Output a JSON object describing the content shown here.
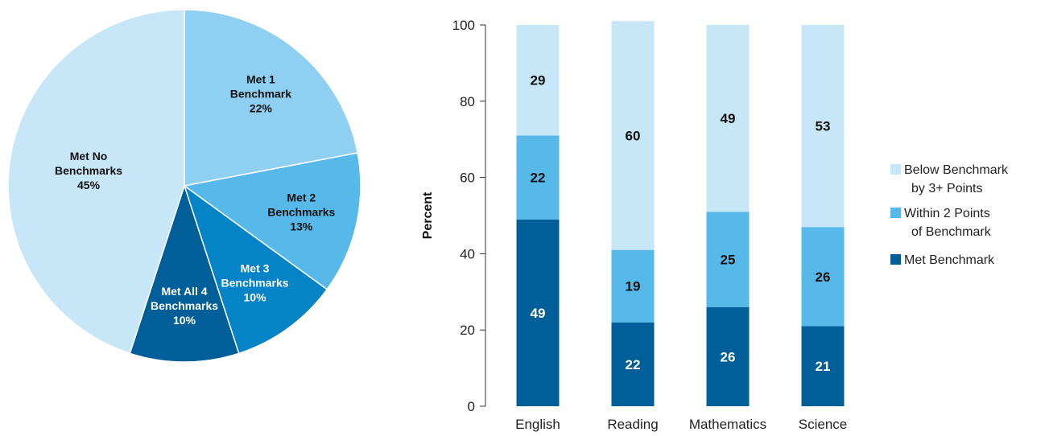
{
  "colors": {
    "lightest": "#c7e6f8",
    "light": "#8ecff2",
    "mid": "#56b9ea",
    "strong": "#0583c7",
    "dark": "#005f99",
    "pie_stroke": "#ffffff"
  },
  "chart_data": [
    {
      "type": "pie",
      "title": "",
      "slices": [
        {
          "lines": [
            "Met 1",
            "Benchmark",
            "22%"
          ],
          "value": 22,
          "color": "#8ecff2",
          "text_color": "#111111"
        },
        {
          "lines": [
            "Met 2",
            "Benchmarks",
            "13%"
          ],
          "value": 13,
          "color": "#56b9ea",
          "text_color": "#111111"
        },
        {
          "lines": [
            "Met 3",
            "Benchmarks",
            "10%"
          ],
          "value": 10,
          "color": "#0583c7",
          "text_color": "#ffffff"
        },
        {
          "lines": [
            "Met All 4",
            "Benchmarks",
            "10%"
          ],
          "value": 10,
          "color": "#005f99",
          "text_color": "#ffffff"
        },
        {
          "lines": [
            "Met No",
            "Benchmarks",
            "45%"
          ],
          "value": 45,
          "color": "#c7e6f8",
          "text_color": "#111111"
        }
      ]
    },
    {
      "type": "bar",
      "stacked": true,
      "title": "",
      "xlabel": "",
      "ylabel": "Percent",
      "ylim": [
        0,
        100
      ],
      "yticks": [
        "0",
        "20",
        "40",
        "60",
        "80",
        "100"
      ],
      "categories": [
        "English",
        "Reading",
        "Mathematics",
        "Science"
      ],
      "series": [
        {
          "name": "Met Benchmark",
          "values": [
            49,
            22,
            26,
            21
          ],
          "color": "#005f99",
          "text_color": "#ffffff"
        },
        {
          "name": "Within 2 Points of Benchmark",
          "legend_lines": [
            "Within 2 Points",
            "of Benchmark"
          ],
          "values": [
            22,
            19,
            25,
            26
          ],
          "color": "#56b9ea",
          "text_color": "#111111"
        },
        {
          "name": "Below Benchmark by 3+ Points",
          "legend_lines": [
            "Below Benchmark",
            "by 3+ Points"
          ],
          "values": [
            29,
            60,
            49,
            53
          ],
          "color": "#c7e6f8",
          "text_color": "#111111"
        }
      ],
      "legend": {
        "position": "right",
        "order": [
          2,
          1,
          0
        ]
      }
    }
  ]
}
